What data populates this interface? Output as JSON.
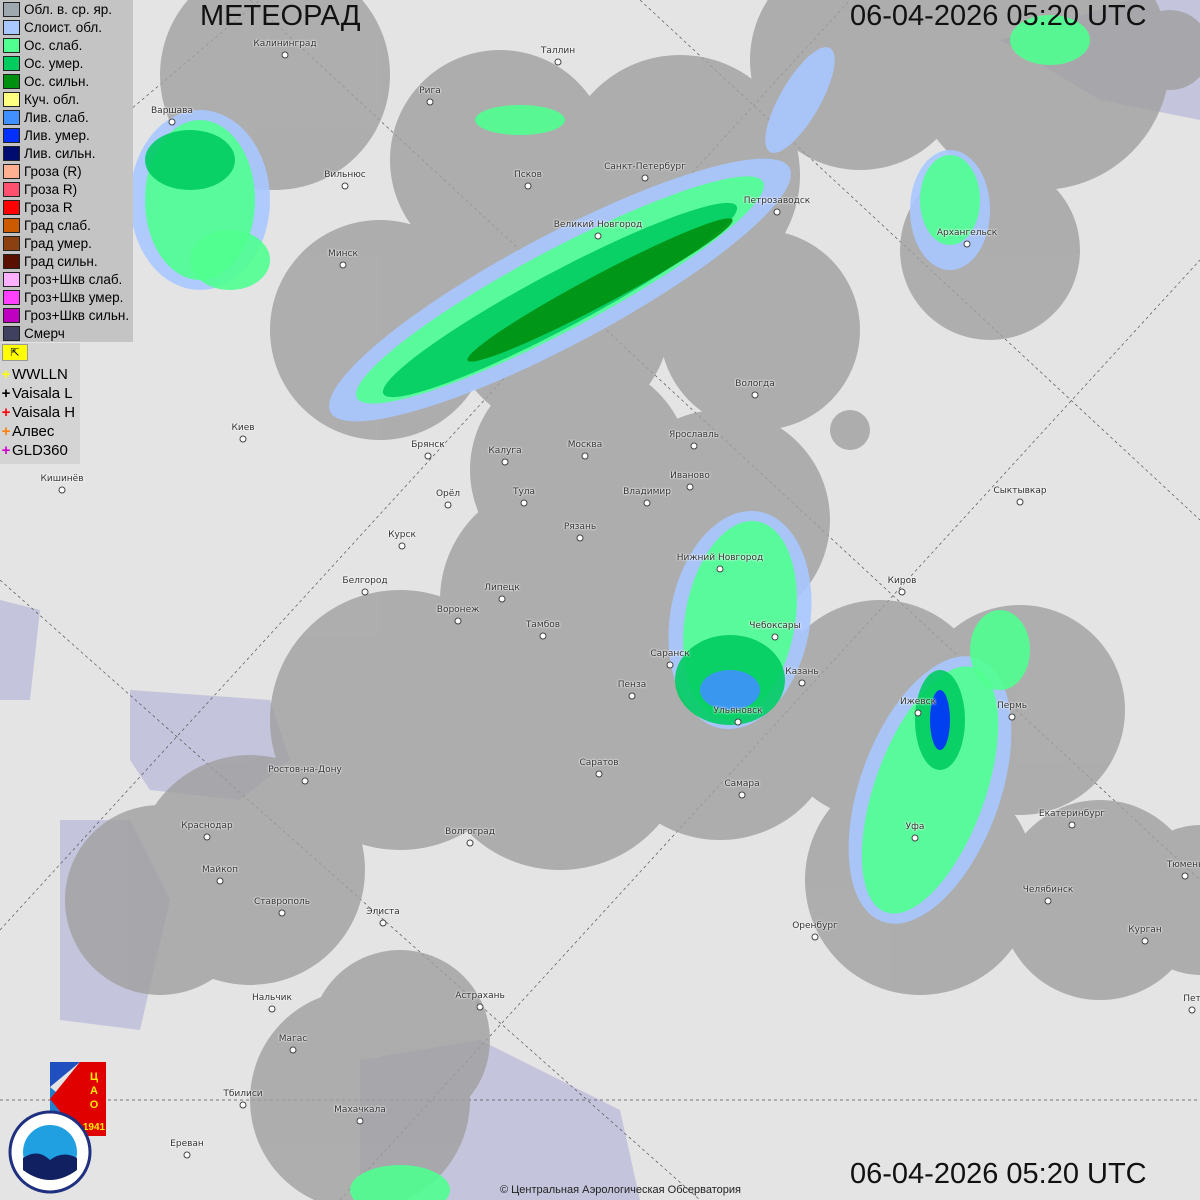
{
  "header": {
    "title": "МЕТЕОРАД",
    "datetime_top": "06-04-2026  05:20 UTC",
    "datetime_bottom": "06-04-2026  05:20 UTC"
  },
  "legend": [
    {
      "label": "Обл. в. ср. яр.",
      "color": "#9ea8ae"
    },
    {
      "label": "Слоист. обл.",
      "color": "#a8c8ff"
    },
    {
      "label": "Ос. слаб.",
      "color": "#50ff90"
    },
    {
      "label": "Ос. умер.",
      "color": "#00cc60"
    },
    {
      "label": "Ос. сильн.",
      "color": "#009010"
    },
    {
      "label": "Куч. обл.",
      "color": "#ffff80"
    },
    {
      "label": "Лив. слаб.",
      "color": "#4090ff"
    },
    {
      "label": "Лив. умер.",
      "color": "#0030ff"
    },
    {
      "label": "Лив. сильн.",
      "color": "#000c70"
    },
    {
      "label": "Гроза (R)",
      "color": "#ffb090"
    },
    {
      "label": "Гроза R)",
      "color": "#ff5070"
    },
    {
      "label": "Гроза R",
      "color": "#ff0000"
    },
    {
      "label": "Град слаб.",
      "color": "#cc5a00"
    },
    {
      "label": "Град умер.",
      "color": "#8a4010"
    },
    {
      "label": "Град сильн.",
      "color": "#5a1000"
    },
    {
      "label": "Гроз+Шкв слаб.",
      "color": "#ffb0ff"
    },
    {
      "label": "Гроз+Шкв умер.",
      "color": "#ff40ff"
    },
    {
      "label": "Гроз+Шкв сильн.",
      "color": "#c000c0"
    },
    {
      "label": "Смерч",
      "color": "#404060"
    }
  ],
  "lightning_legend": [
    {
      "label": "WWLLN",
      "color": "#ffff00"
    },
    {
      "label": "Vaisala L",
      "color": "#000000"
    },
    {
      "label": "Vaisala H",
      "color": "#ff0000"
    },
    {
      "label": "Алвес",
      "color": "#ff8000"
    },
    {
      "label": "GLD360",
      "color": "#d000d0"
    }
  ],
  "lightning_flag_icon": "flag-icon",
  "cities": [
    "Калининград",
    "Таллин",
    "Рига",
    "Варшава",
    "Санкт-Петербург",
    "Псков",
    "Вильнюс",
    "Петрозаводск",
    "Архангельск",
    "Великий Новгород",
    "Минск",
    "Вологда",
    "Киев",
    "Брянск",
    "Москва",
    "Ярославль",
    "Калуга",
    "Иваново",
    "Кишинёв",
    "Орёл",
    "Тула",
    "Владимир",
    "Сыктывкар",
    "Рязань",
    "Курск",
    "Нижний Новгород",
    "Киров",
    "Белгород",
    "Липецк",
    "Воронеж",
    "Тамбов",
    "Чебоксары",
    "Саранск",
    "Казань",
    "Пенза",
    "Ижевск",
    "Пермь",
    "Ульяновск",
    "Саратов",
    "Ростов-на-Дону",
    "Самара",
    "Екатеринбург",
    "Краснодар",
    "Уфа",
    "Волгоград",
    "Тюмень",
    "Майкоп",
    "Челябинск",
    "Ставрополь",
    "Элиста",
    "Оренбург",
    "Курган",
    "Нальчик",
    "Астрахань",
    "Пет",
    "Магас",
    "Тбилиси",
    "Махачкала",
    "Ереван"
  ],
  "logos": {
    "cao": "ЦАО 1941",
    "roshydromet": "РОСГИДРОМЕТ ROSHYDROMET"
  },
  "copyright": "© Центральная Аэрологическая Обсерватория",
  "colors": {
    "background": "#e4e4e4",
    "radar_coverage": "#a0a0a0",
    "water": "#c4c4dc"
  }
}
